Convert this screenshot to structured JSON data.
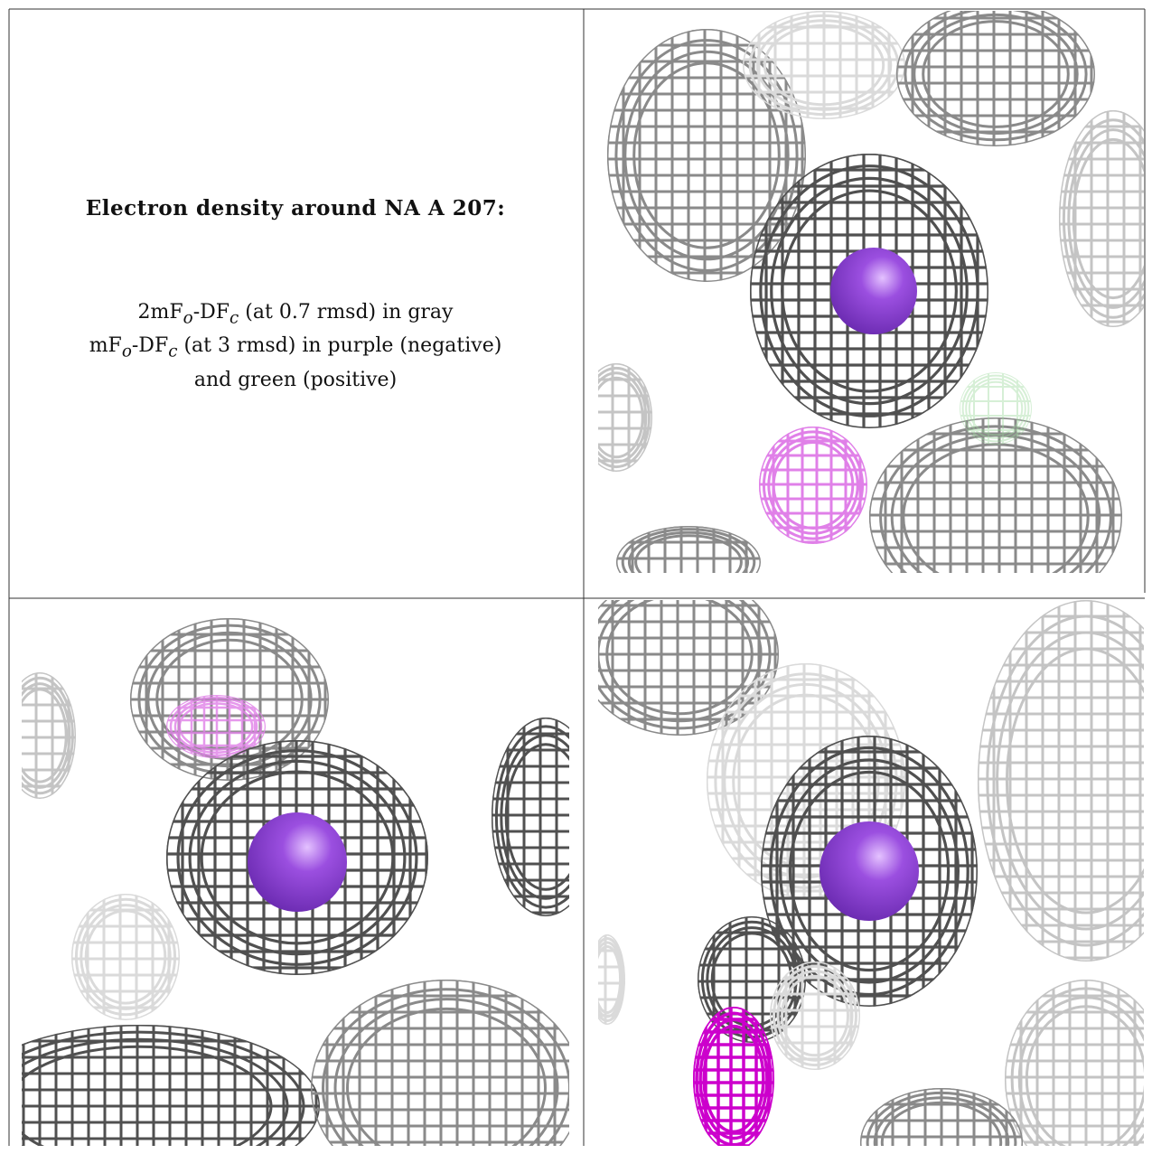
{
  "title": "Electron density around NA A 207:",
  "legend": [
    {
      "main": "2mF",
      "sub1": "o",
      "mid": "-DF",
      "sub2": "c",
      "rest": " (at 0.7 rmsd) in gray"
    },
    {
      "main": "mF",
      "sub1": "o",
      "mid": "-DF",
      "sub2": "c",
      "rest": " (at 3 rmsd) in purple (negative)"
    },
    {
      "text": "and green (positive)"
    }
  ],
  "colors": {
    "mesh_dark": "#505050",
    "mesh_mid": "#8a8a8a",
    "mesh_light": "#c4c4c4",
    "mesh_faint": "#dadada",
    "sphere": "#9b4fe0",
    "sphere_highlight": "#e4c2ff",
    "negative_mesh": "#e080e8",
    "negative_mesh_strong": "#cc00cc",
    "positive_mesh": "#9ad89a",
    "border": "#333333"
  },
  "panels": [
    {
      "name": "view-top-right",
      "atom": "sodium-ion"
    },
    {
      "name": "view-bottom-left",
      "atom": "sodium-ion"
    },
    {
      "name": "view-bottom-right",
      "atom": "sodium-ion"
    }
  ]
}
